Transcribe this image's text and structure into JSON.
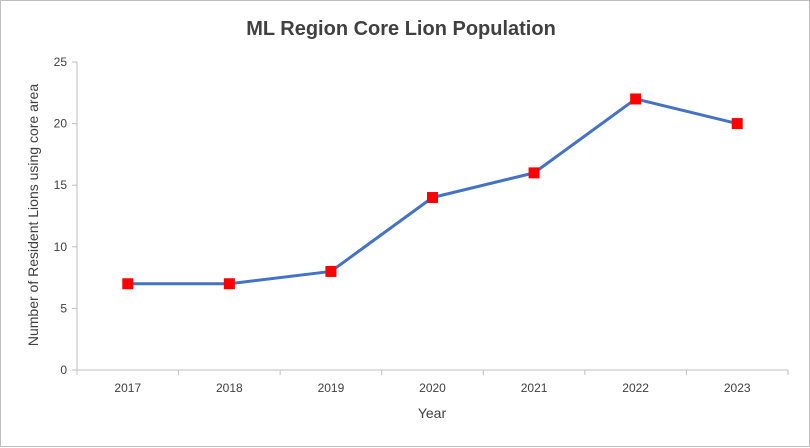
{
  "chart_data": {
    "type": "line",
    "title": "ML Region Core Lion Population",
    "xlabel": "Year",
    "ylabel": "Number of Resident Lions using core area",
    "categories": [
      "2017",
      "2018",
      "2019",
      "2020",
      "2021",
      "2022",
      "2023"
    ],
    "series": [
      {
        "values": [
          7,
          7,
          8,
          14,
          16,
          22,
          20
        ],
        "line_color": "#4472c4",
        "marker_color": "#ff0000",
        "marker": "square"
      }
    ],
    "ylim": [
      0,
      25
    ],
    "yticks": [
      0,
      5,
      10,
      15,
      20,
      25
    ],
    "ytick_labels": [
      "0",
      "5",
      "10",
      "15",
      "20",
      "25"
    ],
    "grid": false,
    "legend": "none"
  }
}
